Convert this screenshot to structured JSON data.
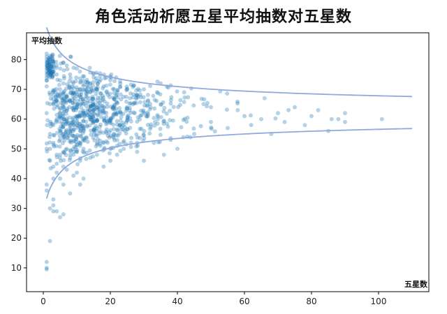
{
  "chart_data": {
    "type": "scatter",
    "title": "角色活动祈愿五星平均抽数对五星数",
    "xlabel": "五星数",
    "ylabel": "平均抽数",
    "xlim": [
      -5,
      115
    ],
    "ylim": [
      2,
      89
    ],
    "xticks": [
      0,
      20,
      40,
      60,
      80,
      100
    ],
    "yticks": [
      10,
      20,
      30,
      40,
      50,
      60,
      70,
      80
    ],
    "grid": false,
    "point_color": "#1f77b4",
    "band_color": "#8faadc",
    "band_center": 62.2,
    "band_scale": 57.2,
    "band_x_range": [
      1,
      110
    ],
    "cluster_seed": 20240615,
    "points": [
      [
        1,
        81
      ],
      [
        1,
        79
      ],
      [
        1,
        78
      ],
      [
        1,
        77
      ],
      [
        1,
        76
      ],
      [
        1,
        75
      ],
      [
        1,
        82
      ],
      [
        1,
        74
      ],
      [
        1,
        80
      ],
      [
        1,
        73
      ],
      [
        1,
        12
      ],
      [
        1,
        10
      ],
      [
        1,
        9.5
      ],
      [
        1,
        36
      ],
      [
        1,
        38
      ],
      [
        1,
        50
      ],
      [
        1,
        62
      ],
      [
        1,
        71
      ],
      [
        2,
        30
      ],
      [
        2,
        50
      ],
      [
        2,
        46
      ],
      [
        2,
        80
      ],
      [
        2,
        78
      ],
      [
        2,
        76
      ],
      [
        2,
        75
      ],
      [
        2,
        79
      ],
      [
        2,
        77
      ],
      [
        2,
        74
      ],
      [
        2,
        19
      ],
      [
        2,
        55
      ],
      [
        2,
        65
      ],
      [
        3,
        31
      ],
      [
        3,
        33
      ],
      [
        3,
        29
      ],
      [
        3,
        40
      ],
      [
        3,
        44
      ],
      [
        3,
        52
      ],
      [
        3,
        58
      ],
      [
        3,
        78
      ],
      [
        3,
        76
      ],
      [
        3,
        68
      ],
      [
        4,
        29
      ],
      [
        4,
        42
      ],
      [
        4,
        45
      ],
      [
        4,
        48
      ],
      [
        4,
        60
      ],
      [
        4,
        75
      ],
      [
        4,
        78
      ],
      [
        4,
        66
      ],
      [
        5,
        27
      ],
      [
        5,
        40
      ],
      [
        5,
        47
      ],
      [
        5,
        53
      ],
      [
        5,
        62
      ],
      [
        5,
        70
      ],
      [
        5,
        77
      ],
      [
        5,
        73
      ],
      [
        6,
        28
      ],
      [
        6,
        38
      ],
      [
        6,
        44
      ],
      [
        6,
        55
      ],
      [
        6,
        64
      ],
      [
        6,
        72
      ],
      [
        6,
        79
      ],
      [
        7,
        43
      ],
      [
        7,
        50
      ],
      [
        7,
        59
      ],
      [
        7,
        68
      ],
      [
        7,
        78
      ],
      [
        8,
        35
      ],
      [
        8,
        47
      ],
      [
        8,
        56
      ],
      [
        8,
        66
      ],
      [
        8,
        75
      ],
      [
        9,
        41
      ],
      [
        9,
        48
      ],
      [
        9,
        58
      ],
      [
        9,
        63
      ],
      [
        9,
        72
      ],
      [
        10,
        42
      ],
      [
        10,
        49
      ],
      [
        10,
        54
      ],
      [
        10,
        69
      ],
      [
        10,
        77
      ],
      [
        11,
        38
      ],
      [
        11,
        46
      ],
      [
        11,
        52
      ],
      [
        11,
        61
      ],
      [
        11,
        70
      ],
      [
        12,
        40
      ],
      [
        12,
        50
      ],
      [
        12,
        57
      ],
      [
        12,
        66
      ],
      [
        14,
        47
      ],
      [
        14,
        72
      ],
      [
        16,
        48
      ],
      [
        16,
        70
      ],
      [
        18,
        44
      ],
      [
        18,
        52
      ],
      [
        18,
        71
      ],
      [
        20,
        46
      ],
      [
        20,
        50
      ],
      [
        22,
        48
      ],
      [
        22,
        69
      ],
      [
        24,
        50
      ],
      [
        25,
        70
      ],
      [
        28,
        49
      ],
      [
        28,
        52
      ],
      [
        30,
        46
      ],
      [
        30,
        70
      ],
      [
        33,
        52
      ],
      [
        35,
        72
      ],
      [
        36,
        48
      ],
      [
        38,
        53
      ],
      [
        40,
        50
      ],
      [
        42,
        69
      ],
      [
        45,
        55
      ],
      [
        50,
        59
      ],
      [
        50,
        64
      ],
      [
        55,
        57
      ],
      [
        58,
        63
      ],
      [
        60,
        61
      ],
      [
        62,
        58
      ],
      [
        65,
        60
      ],
      [
        66,
        67
      ],
      [
        68,
        55
      ],
      [
        70,
        62
      ],
      [
        72,
        59
      ],
      [
        75,
        64
      ],
      [
        78,
        58
      ],
      [
        80,
        61
      ],
      [
        82,
        63
      ],
      [
        85,
        56
      ],
      [
        86,
        60
      ],
      [
        88,
        60
      ],
      [
        90,
        59
      ],
      [
        90,
        62
      ],
      [
        101,
        60
      ]
    ]
  }
}
